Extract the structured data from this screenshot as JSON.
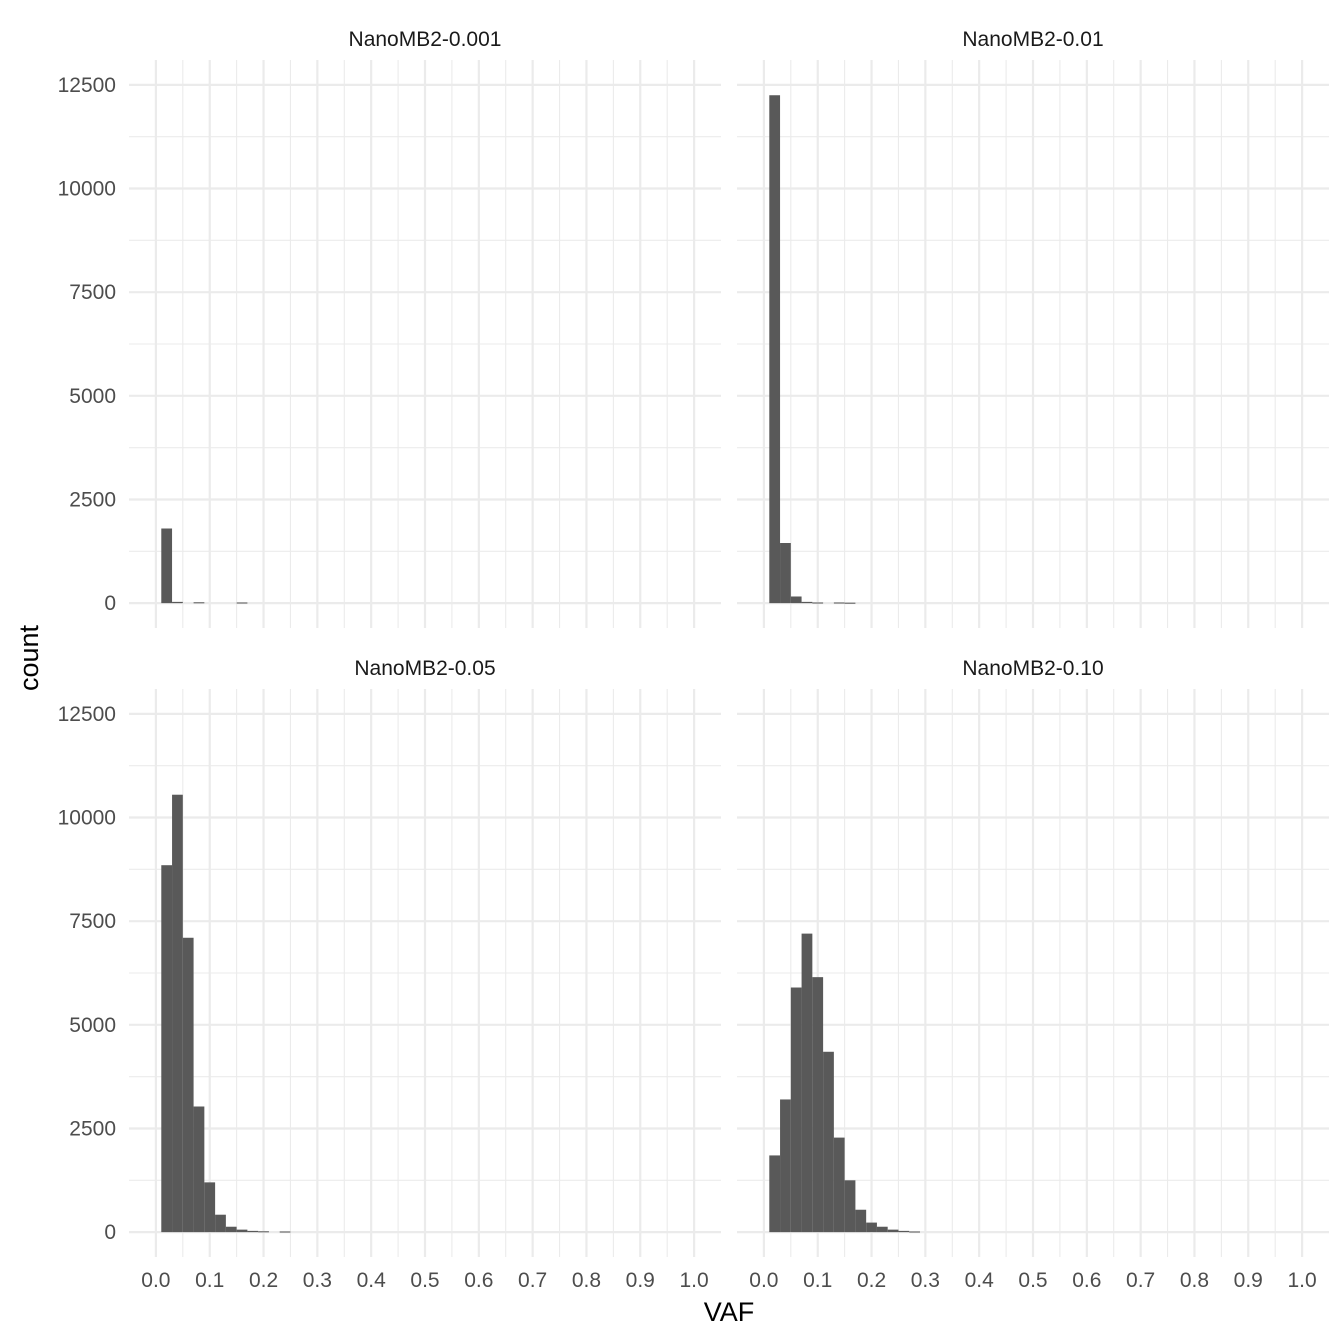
{
  "chart_data": {
    "type": "histogram",
    "xlabel": "VAF",
    "ylabel": "count",
    "xlim": [
      -0.05,
      1.05
    ],
    "ylim": [
      0,
      12500
    ],
    "x_ticks": [
      "0.0",
      "0.1",
      "0.2",
      "0.3",
      "0.4",
      "0.5",
      "0.6",
      "0.7",
      "0.8",
      "0.9",
      "1.0"
    ],
    "y_ticks": [
      "0",
      "2500",
      "5000",
      "7500",
      "10000",
      "12500"
    ],
    "bin_width": 0.02,
    "bar_color": "#595959",
    "grid": true,
    "panels": [
      {
        "title": "NanoMB2-0.001",
        "bins": [
          {
            "x0": 0.01,
            "count": 1800
          },
          {
            "x0": 0.03,
            "count": 30
          },
          {
            "x0": 0.07,
            "count": 20
          },
          {
            "x0": 0.15,
            "count": 15
          }
        ]
      },
      {
        "title": "NanoMB2-0.01",
        "bins": [
          {
            "x0": 0.01,
            "count": 12250
          },
          {
            "x0": 0.03,
            "count": 1450
          },
          {
            "x0": 0.05,
            "count": 160
          },
          {
            "x0": 0.07,
            "count": 30
          },
          {
            "x0": 0.09,
            "count": 15
          },
          {
            "x0": 0.13,
            "count": 15
          },
          {
            "x0": 0.15,
            "count": 10
          }
        ]
      },
      {
        "title": "NanoMB2-0.05",
        "bins": [
          {
            "x0": 0.01,
            "count": 8850
          },
          {
            "x0": 0.03,
            "count": 10550
          },
          {
            "x0": 0.05,
            "count": 7100
          },
          {
            "x0": 0.07,
            "count": 3030
          },
          {
            "x0": 0.09,
            "count": 1200
          },
          {
            "x0": 0.11,
            "count": 420
          },
          {
            "x0": 0.13,
            "count": 130
          },
          {
            "x0": 0.15,
            "count": 60
          },
          {
            "x0": 0.17,
            "count": 30
          },
          {
            "x0": 0.19,
            "count": 20
          },
          {
            "x0": 0.23,
            "count": 15
          }
        ]
      },
      {
        "title": "NanoMB2-0.10",
        "bins": [
          {
            "x0": 0.01,
            "count": 1850
          },
          {
            "x0": 0.03,
            "count": 3200
          },
          {
            "x0": 0.05,
            "count": 5900
          },
          {
            "x0": 0.07,
            "count": 7200
          },
          {
            "x0": 0.09,
            "count": 6150
          },
          {
            "x0": 0.11,
            "count": 4350
          },
          {
            "x0": 0.13,
            "count": 2280
          },
          {
            "x0": 0.15,
            "count": 1250
          },
          {
            "x0": 0.17,
            "count": 540
          },
          {
            "x0": 0.19,
            "count": 230
          },
          {
            "x0": 0.21,
            "count": 130
          },
          {
            "x0": 0.23,
            "count": 60
          },
          {
            "x0": 0.25,
            "count": 30
          },
          {
            "x0": 0.27,
            "count": 15
          }
        ]
      }
    ]
  }
}
